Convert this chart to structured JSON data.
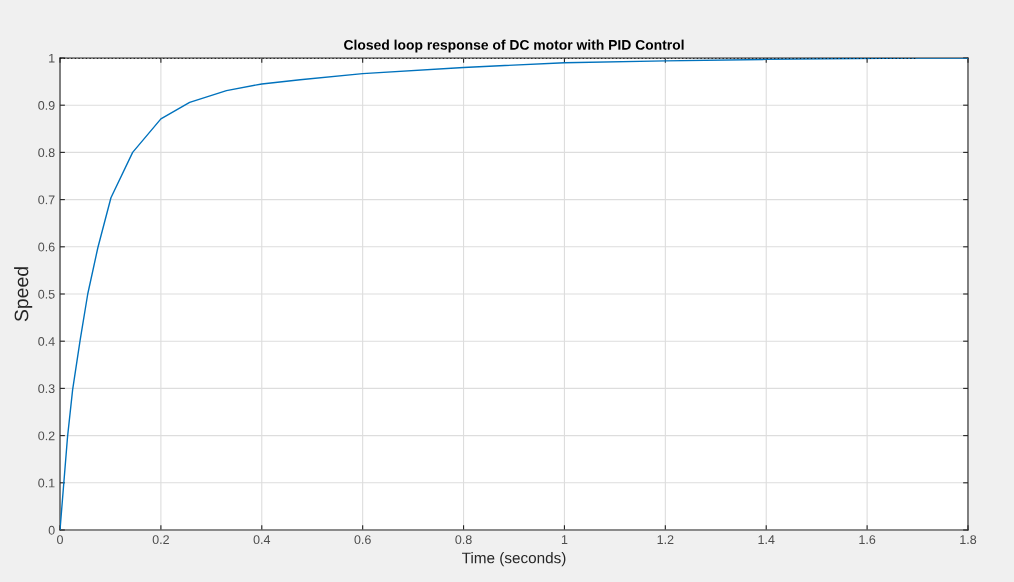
{
  "chart_data": {
    "type": "line",
    "title": "Closed loop response of DC motor with PID Control",
    "xlabel": "Time (seconds)",
    "ylabel": "Speed",
    "series": [
      {
        "color": "#0072bd",
        "line_style": "solid",
        "x": [
          0,
          0.015,
          0.025,
          0.04,
          0.055,
          0.075,
          0.101,
          0.144,
          0.2,
          0.257,
          0.33,
          0.4,
          0.476,
          0.6,
          0.8,
          1.0,
          1.2,
          1.4,
          1.69,
          1.8
        ],
        "values": [
          0,
          0.198,
          0.297,
          0.403,
          0.5,
          0.598,
          0.704,
          0.8,
          0.871,
          0.906,
          0.931,
          0.945,
          0.954,
          0.967,
          0.98,
          0.99,
          0.994,
          0.997,
          1.0,
          1.0
        ]
      },
      {
        "color": "#000000",
        "line_style": "dotted",
        "x": [
          0,
          1.7
        ],
        "values": [
          1,
          1
        ]
      }
    ],
    "xlim": [
      0,
      1.8
    ],
    "ylim": [
      0,
      1
    ],
    "xticks": [
      0,
      0.2,
      0.4,
      0.6,
      0.8,
      1,
      1.2,
      1.4,
      1.6,
      1.8
    ],
    "yticks": [
      0,
      0.1,
      0.2,
      0.3,
      0.4,
      0.5,
      0.6,
      0.7,
      0.8,
      0.9,
      1
    ],
    "grid": true
  }
}
